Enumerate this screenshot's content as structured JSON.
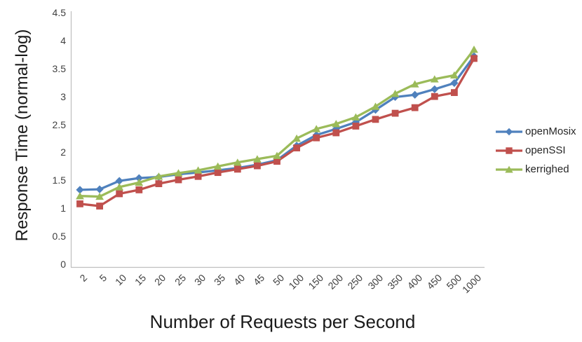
{
  "chart_data": {
    "type": "line",
    "title": "",
    "xlabel": "Number of Requests per Second",
    "ylabel": "Response Time (normal-log)",
    "categories": [
      "2",
      "5",
      "10",
      "15",
      "20",
      "25",
      "30",
      "35",
      "40",
      "45",
      "50",
      "100",
      "150",
      "200",
      "250",
      "300",
      "350",
      "400",
      "450",
      "500",
      "1000"
    ],
    "y_ticks": [
      "0",
      "0.5",
      "1",
      "1.5",
      "2",
      "2.5",
      "3",
      "3.5",
      "4",
      "4.5"
    ],
    "ylim": [
      0,
      4.5
    ],
    "grid": false,
    "legend_position": "right",
    "axis_color": "#bfbfbf",
    "tick_label_color": "#3f3f3f",
    "series": [
      {
        "name": "openMosix",
        "color": "#4f81bd",
        "marker": "diamond",
        "values": [
          1.33,
          1.34,
          1.49,
          1.54,
          1.56,
          1.61,
          1.64,
          1.68,
          1.72,
          1.78,
          1.86,
          2.12,
          2.31,
          2.42,
          2.54,
          2.76,
          2.99,
          3.03,
          3.13,
          3.24,
          3.72
        ]
      },
      {
        "name": "openSSI",
        "color": "#c0504d",
        "marker": "square",
        "values": [
          1.08,
          1.04,
          1.26,
          1.33,
          1.44,
          1.51,
          1.57,
          1.64,
          1.7,
          1.76,
          1.84,
          2.08,
          2.26,
          2.35,
          2.47,
          2.59,
          2.7,
          2.8,
          3.0,
          3.07,
          3.68
        ]
      },
      {
        "name": "kerrighed",
        "color": "#9bbb59",
        "marker": "triangle",
        "values": [
          1.22,
          1.21,
          1.38,
          1.46,
          1.57,
          1.63,
          1.68,
          1.75,
          1.82,
          1.88,
          1.94,
          2.25,
          2.42,
          2.51,
          2.63,
          2.82,
          3.05,
          3.22,
          3.31,
          3.38,
          3.84
        ]
      }
    ]
  }
}
